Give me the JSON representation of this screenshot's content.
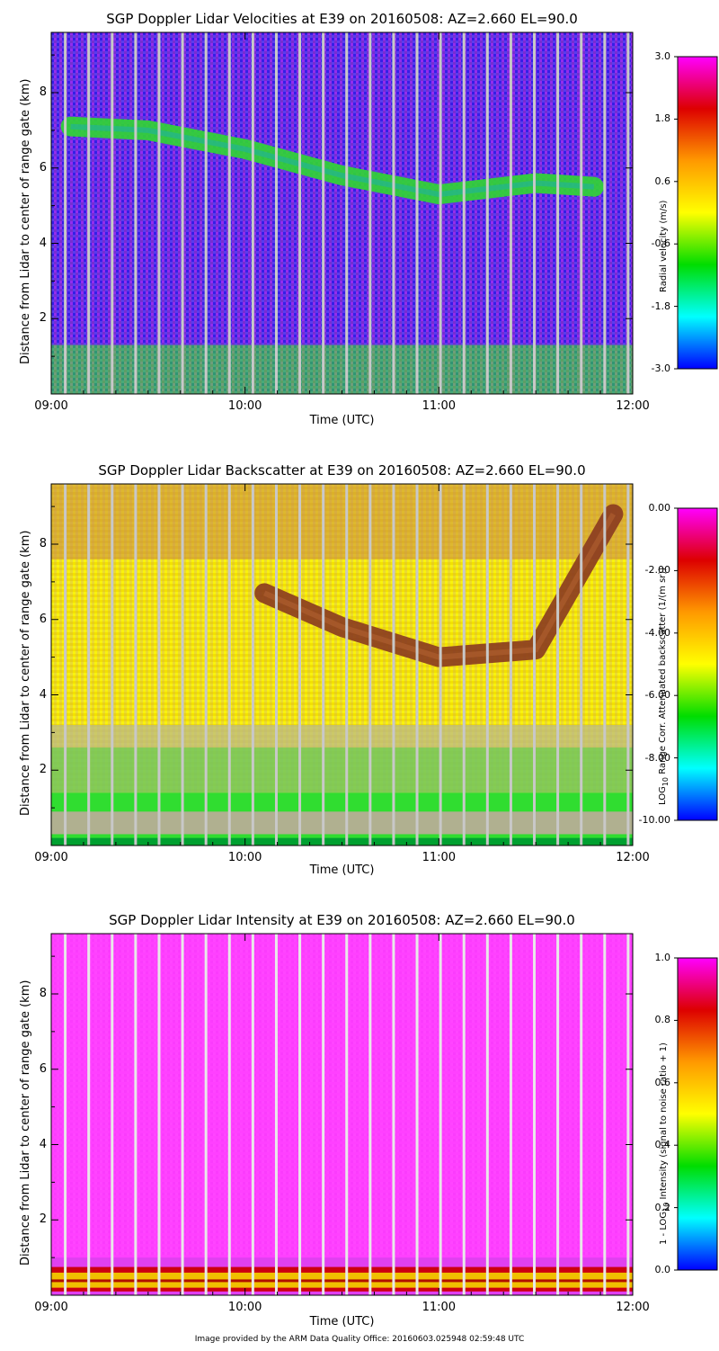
{
  "panels": [
    {
      "title": "SGP Doppler Lidar Velocities at E39 on 20160508: AZ=2.660 EL=90.0",
      "xlabel": "Time (UTC)",
      "ylabel": "Distance from Lidar to center of range gate (km)",
      "cbar_label": "Radial velocity (m/s)",
      "cbar_ticks": [
        "3.0",
        "1.8",
        "0.6",
        "-0.6",
        "-1.8",
        "-3.0"
      ]
    },
    {
      "title": "SGP Doppler Lidar Backscatter at E39 on 20160508: AZ=2.660 EL=90.0",
      "xlabel": "Time (UTC)",
      "ylabel": "Distance from Lidar to center of range gate (km)",
      "cbar_label_prefix": "LOG",
      "cbar_label_sub": "10",
      "cbar_label_rest": " Range Corr. Attenuated backscatter (1/(m sr))",
      "cbar_ticks": [
        "0.00",
        "-2.00",
        "-4.00",
        "-6.00",
        "-8.00",
        "-10.00"
      ]
    },
    {
      "title": "SGP Doppler Lidar Intensity at E39 on 20160508: AZ=2.660 EL=90.0",
      "xlabel": "Time (UTC)",
      "ylabel": "Distance from Lidar to center of range gate (km)",
      "cbar_label_prefix": "1 - LOG",
      "cbar_label_sub": "10",
      "cbar_label_rest": " Intensity (signal to noise ratio + 1)",
      "cbar_ticks": [
        "1.0",
        "0.8",
        "0.6",
        "0.4",
        "0.2",
        "0.0"
      ]
    }
  ],
  "footer": "Image provided by the ARM Data Quality Office: 20160603.025948 02:59:48 UTC",
  "chart_data": [
    {
      "type": "heatmap",
      "title": "SGP Doppler Lidar Velocities at E39 on 20160508: AZ=2.660 EL=90.0",
      "xlabel": "Time (UTC)",
      "ylabel": "Distance from Lidar to center of range gate (km)",
      "x_ticks": [
        "09:00",
        "10:00",
        "11:00",
        "12:00"
      ],
      "y_ticks": [
        "2",
        "4",
        "6",
        "8"
      ],
      "xlim_hours": [
        9,
        12
      ],
      "ylim_km": [
        0,
        9.6
      ],
      "colorbar": {
        "label": "Radial velocity (m/s)",
        "min": -3.0,
        "max": 3.0,
        "ticks": [
          3.0,
          1.8,
          0.6,
          -0.6,
          -1.8,
          -3.0
        ]
      },
      "cloud_layer_km": [
        [
          9.1,
          7.1
        ],
        [
          9.5,
          7.0
        ],
        [
          10.0,
          6.5
        ],
        [
          10.5,
          5.8
        ],
        [
          11.0,
          5.3
        ],
        [
          11.5,
          5.6
        ],
        [
          11.8,
          5.5
        ]
      ],
      "boundary_layer_top_km": 1.3
    },
    {
      "type": "heatmap",
      "title": "SGP Doppler Lidar Backscatter at E39 on 20160508: AZ=2.660 EL=90.0",
      "xlabel": "Time (UTC)",
      "ylabel": "Distance from Lidar to center of range gate (km)",
      "x_ticks": [
        "09:00",
        "10:00",
        "11:00",
        "12:00"
      ],
      "y_ticks": [
        "2",
        "4",
        "6",
        "8"
      ],
      "xlim_hours": [
        9,
        12
      ],
      "ylim_km": [
        0,
        9.6
      ],
      "colorbar": {
        "label": "LOG10 Range Corr. Attenuated backscatter (1/(m sr))",
        "min": -10.0,
        "max": 0.0,
        "ticks": [
          0.0,
          -2.0,
          -4.0,
          -6.0,
          -8.0,
          -10.0
        ]
      },
      "cloud_layer_km": [
        [
          10.1,
          6.7
        ],
        [
          10.5,
          5.8
        ],
        [
          11.0,
          5.0
        ],
        [
          11.5,
          5.2
        ],
        [
          11.9,
          8.8
        ]
      ]
    },
    {
      "type": "heatmap",
      "title": "SGP Doppler Lidar Intensity at E39 on 20160508: AZ=2.660 EL=90.0",
      "xlabel": "Time (UTC)",
      "ylabel": "Distance from Lidar to center of range gate (km)",
      "x_ticks": [
        "09:00",
        "10:00",
        "11:00",
        "12:00"
      ],
      "y_ticks": [
        "2",
        "4",
        "6",
        "8"
      ],
      "xlim_hours": [
        9,
        12
      ],
      "ylim_km": [
        0,
        9.6
      ],
      "colorbar": {
        "label": "1 - LOG10 Intensity (signal to noise ratio + 1)",
        "min": 0.0,
        "max": 1.0,
        "ticks": [
          1.0,
          0.8,
          0.6,
          0.4,
          0.2,
          0.0
        ]
      },
      "low_signal_band_km": [
        0.2,
        0.6
      ]
    }
  ]
}
